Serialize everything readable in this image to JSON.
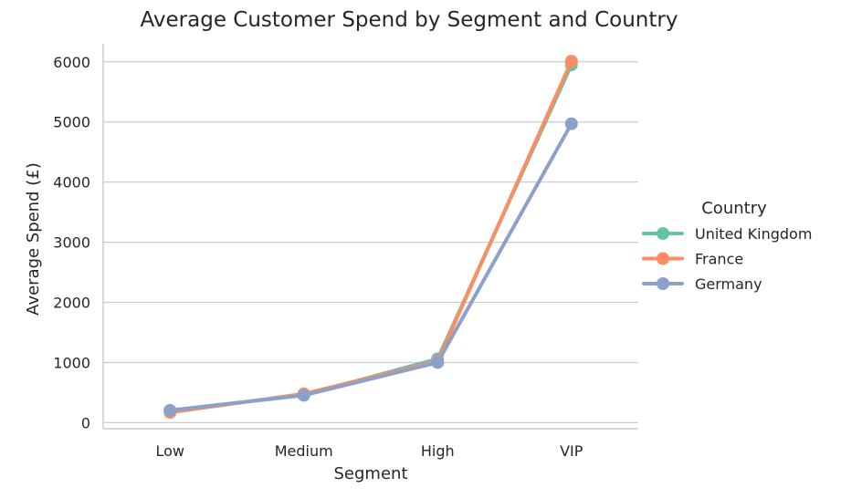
{
  "chart_data": {
    "type": "line",
    "title": "Average Customer Spend by Segment and Country",
    "xlabel": "Segment",
    "ylabel": "Average Spend (£)",
    "categories": [
      "Low",
      "Medium",
      "High",
      "VIP"
    ],
    "ylim": [
      -100,
      6300
    ],
    "yticks": [
      0,
      1000,
      2000,
      3000,
      4000,
      5000,
      6000
    ],
    "grid": "horizontal",
    "legend": {
      "title": "Country",
      "placement": "right"
    },
    "series": [
      {
        "name": "United Kingdom",
        "color": "#66c2a5",
        "values": [
          200,
          460,
          1060,
          5950
        ]
      },
      {
        "name": "France",
        "color": "#fc8d62",
        "values": [
          170,
          480,
          1020,
          6010
        ]
      },
      {
        "name": "Germany",
        "color": "#8da0cb",
        "values": [
          205,
          455,
          1000,
          4970
        ]
      }
    ]
  }
}
